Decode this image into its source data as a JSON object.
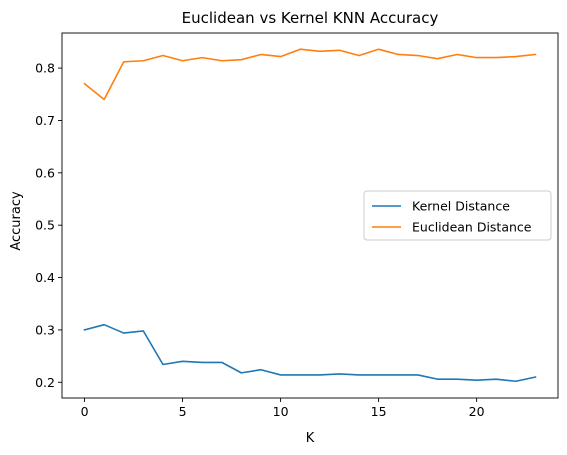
{
  "chart_data": {
    "type": "line",
    "title": "Euclidean vs Kernel KNN Accuracy",
    "xlabel": "K",
    "ylabel": "Accuracy",
    "xlim": [
      -1.15,
      24.15
    ],
    "ylim": [
      0.17,
      0.867
    ],
    "xticks": [
      0,
      5,
      10,
      15,
      20
    ],
    "yticks": [
      0.2,
      0.3,
      0.4,
      0.5,
      0.6,
      0.7,
      0.8
    ],
    "grid": false,
    "legend_position": "center-right",
    "series": [
      {
        "name": "Kernel Distance",
        "color": "#1f77b4",
        "x": [
          0,
          1,
          2,
          3,
          4,
          5,
          6,
          7,
          8,
          9,
          10,
          11,
          12,
          13,
          14,
          15,
          16,
          17,
          18,
          19,
          20,
          21,
          22,
          23
        ],
        "y": [
          0.3,
          0.31,
          0.294,
          0.298,
          0.234,
          0.24,
          0.238,
          0.238,
          0.218,
          0.224,
          0.214,
          0.214,
          0.214,
          0.216,
          0.214,
          0.214,
          0.214,
          0.214,
          0.206,
          0.206,
          0.204,
          0.206,
          0.202,
          0.21
        ]
      },
      {
        "name": "Euclidean Distance",
        "color": "#ff7f0e",
        "x": [
          0,
          1,
          2,
          3,
          4,
          5,
          6,
          7,
          8,
          9,
          10,
          11,
          12,
          13,
          14,
          15,
          16,
          17,
          18,
          19,
          20,
          21,
          22,
          23
        ],
        "y": [
          0.77,
          0.74,
          0.812,
          0.814,
          0.824,
          0.814,
          0.82,
          0.814,
          0.816,
          0.826,
          0.822,
          0.836,
          0.832,
          0.834,
          0.824,
          0.836,
          0.826,
          0.824,
          0.818,
          0.826,
          0.82,
          0.82,
          0.822,
          0.826
        ]
      }
    ]
  }
}
